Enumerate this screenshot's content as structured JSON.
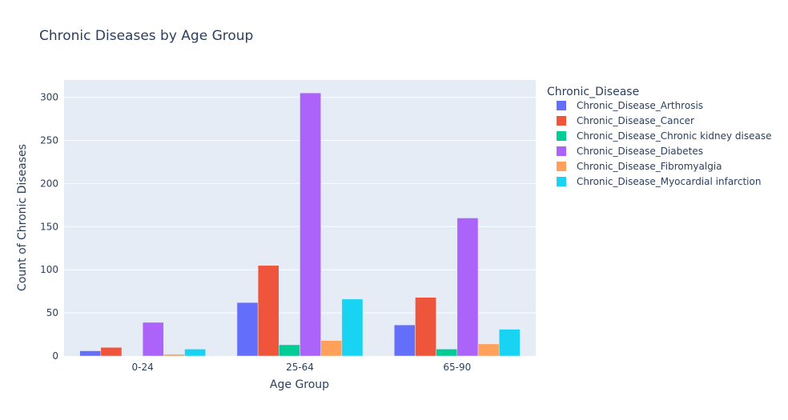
{
  "chart_data": {
    "type": "bar",
    "title": "Chronic Diseases by Age Group",
    "xlabel": "Age Group",
    "ylabel": "Count of Chronic Diseases",
    "categories": [
      "0-24",
      "25-64",
      "65-90"
    ],
    "ylim": [
      0,
      320
    ],
    "yticks": [
      0,
      50,
      100,
      150,
      200,
      250,
      300
    ],
    "grid": true,
    "legend_title": "Chronic_Disease",
    "legend_position": "right",
    "series": [
      {
        "name": "Chronic_Disease_Arthrosis",
        "color": "#636efa",
        "values": [
          6,
          62,
          36
        ]
      },
      {
        "name": "Chronic_Disease_Cancer",
        "color": "#ef553b",
        "values": [
          10,
          105,
          68
        ]
      },
      {
        "name": "Chronic_Disease_Chronic kidney disease",
        "color": "#00cc96",
        "values": [
          0,
          13,
          8
        ]
      },
      {
        "name": "Chronic_Disease_Diabetes",
        "color": "#ab63fa",
        "values": [
          39,
          305,
          160
        ]
      },
      {
        "name": "Chronic_Disease_Fibromyalgia",
        "color": "#ffa15a",
        "values": [
          2,
          18,
          14
        ]
      },
      {
        "name": "Chronic_Disease_Myocardial infarction",
        "color": "#19d3f3",
        "values": [
          8,
          66,
          31
        ]
      }
    ]
  }
}
